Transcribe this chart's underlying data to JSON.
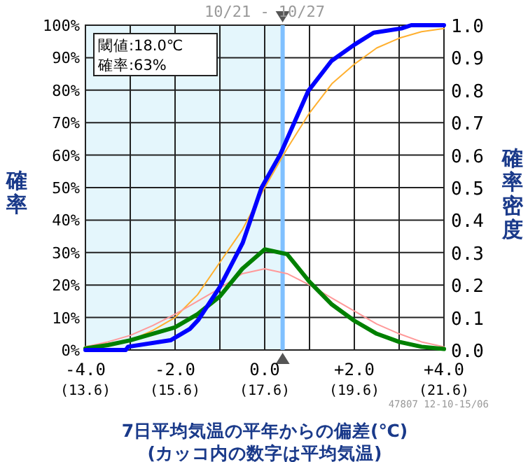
{
  "chart_data": {
    "type": "line",
    "xlabel": "7日平均気温の平年からの偏差(℃)\n(カッコ内の数字は平均気温)",
    "ylabel": "確率",
    "y2label": "確率密度",
    "annotations": [
      "閾値:18.0℃",
      "確率:63%",
      "10/21 - 10/27",
      "47807 12-10-15/06"
    ],
    "xlim": [
      -4,
      4
    ],
    "xticks": [
      {
        "value": -4,
        "label": "-4.0"
      },
      {
        "value": -3,
        "label": null
      },
      {
        "value": -2,
        "label": "-2.0"
      },
      {
        "value": -1,
        "label": null
      },
      {
        "value": 0,
        "label": "0.0"
      },
      {
        "value": 1,
        "label": null
      },
      {
        "value": 2,
        "label": "+2.0"
      },
      {
        "value": 3,
        "label": null
      },
      {
        "value": 4,
        "label": "+4.0"
      }
    ],
    "x2lim": [
      13.6,
      21.6
    ],
    "x2ticks": [
      {
        "value": 13.6,
        "label": "(13.6)"
      },
      {
        "value": 15.6,
        "label": "(15.6)"
      },
      {
        "value": 17.6,
        "label": "(17.6)"
      },
      {
        "value": 19.6,
        "label": "(19.6)"
      },
      {
        "value": 21.6,
        "label": "(21.6)"
      }
    ],
    "ylim": [
      0,
      100
    ],
    "yticks": [
      {
        "value": 0,
        "label": "0%"
      },
      {
        "value": 10,
        "label": "10%"
      },
      {
        "value": 20,
        "label": "20%"
      },
      {
        "value": 30,
        "label": "30%"
      },
      {
        "value": 40,
        "label": "40%"
      },
      {
        "value": 50,
        "label": "50%"
      },
      {
        "value": 60,
        "label": "60%"
      },
      {
        "value": 70,
        "label": "70%"
      },
      {
        "value": 80,
        "label": "80%"
      },
      {
        "value": 90,
        "label": "90%"
      },
      {
        "value": 100,
        "label": "100%"
      }
    ],
    "y2lim": [
      0,
      1
    ],
    "y2ticks": [
      {
        "value": 0,
        "label": "0.0"
      },
      {
        "value": 0.1,
        "label": "0.1"
      },
      {
        "value": 0.2,
        "label": "0.2"
      },
      {
        "value": 0.3,
        "label": "0.3"
      },
      {
        "value": 0.4,
        "label": "0.4"
      },
      {
        "value": 0.5,
        "label": "0.5"
      },
      {
        "value": 0.6,
        "label": "0.6"
      },
      {
        "value": 0.7,
        "label": "0.7"
      },
      {
        "value": 0.8,
        "label": "0.8"
      },
      {
        "value": 0.9,
        "label": "0.9"
      },
      {
        "value": 1,
        "label": "1.0"
      }
    ],
    "grid": true,
    "bands": [
      {
        "axis": "x",
        "from": -4,
        "to": 0.4,
        "color": "#e4f6fc"
      }
    ],
    "ref_lines": [
      {
        "axis": "x",
        "value": 0.4,
        "color": "#80c0ff"
      }
    ],
    "series": [
      {
        "color": "#ffb030",
        "x": [
          -4,
          -3.5,
          -3,
          -2.5,
          -2,
          -1.5,
          -1,
          -0.5,
          0,
          0.5,
          1,
          1.5,
          2,
          2.5,
          3,
          3.5,
          4
        ],
        "values": [
          1,
          2,
          3,
          6,
          10,
          17,
          27,
          37,
          50,
          62,
          73,
          82,
          88,
          93,
          96,
          98,
          99
        ]
      },
      {
        "color": "#ff9999",
        "axis": "y2",
        "x": [
          -4,
          -3.5,
          -3,
          -2.5,
          -2,
          -1.5,
          -1,
          -0.5,
          0,
          0.5,
          1,
          1.5,
          2,
          2.5,
          3,
          3.5,
          4
        ],
        "values": [
          0.01,
          0.025,
          0.045,
          0.075,
          0.11,
          0.15,
          0.19,
          0.235,
          0.25,
          0.235,
          0.2,
          0.16,
          0.12,
          0.08,
          0.05,
          0.025,
          0.01
        ]
      },
      {
        "color": "#008000",
        "axis": "y2",
        "x": [
          -4,
          -3.5,
          -3,
          -2.5,
          -2,
          -1.5,
          -1,
          -0.5,
          0,
          0.5,
          1,
          1.5,
          2,
          2.5,
          3,
          3.5,
          4
        ],
        "values": [
          0.005,
          0.015,
          0.03,
          0.05,
          0.07,
          0.11,
          0.165,
          0.25,
          0.31,
          0.295,
          0.21,
          0.14,
          0.09,
          0.05,
          0.025,
          0.01,
          0.003
        ]
      },
      {
        "color": "#0000ff",
        "x": [
          -4,
          -3.1,
          -3.05,
          -2.1,
          -1.67,
          -1.48,
          -1,
          -0.49,
          -0.07,
          0.34,
          0.97,
          1.49,
          2,
          2.43,
          3.05,
          3.27,
          4
        ],
        "values": [
          0,
          0,
          1,
          3,
          6.5,
          9.3,
          19.4,
          33,
          50,
          60,
          79.7,
          89,
          94,
          97.7,
          99,
          100,
          100
        ]
      }
    ]
  }
}
